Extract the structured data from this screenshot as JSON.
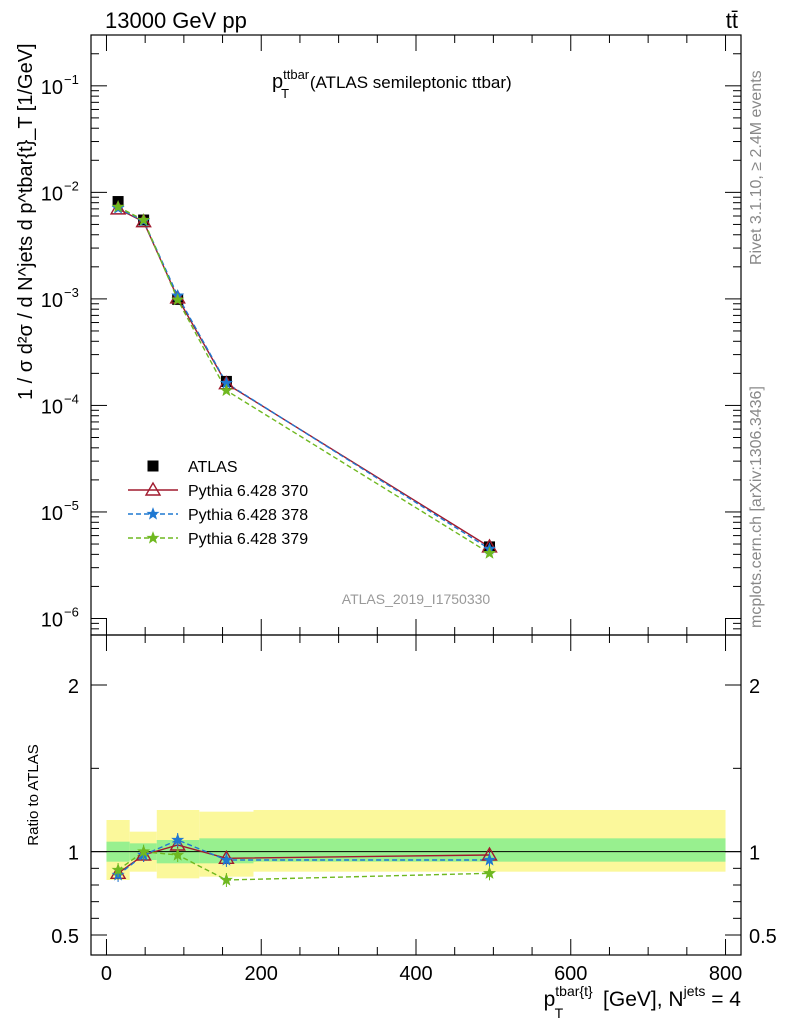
{
  "header": {
    "left": "13000 GeV pp",
    "right": "tt̄"
  },
  "side_labels": {
    "right_top": "Rivet 3.1.10, ≥ 2.4M events",
    "right_bottom": "mcplots.cern.ch [arXiv:1306.3436]"
  },
  "watermark": "ATLAS_2019_I1750330",
  "chart_data": [
    {
      "type": "line",
      "title": {
        "main": "p",
        "sup": "ttbar",
        "sub": "T",
        "rest": " (ATLAS semileptonic ttbar)"
      },
      "ylabel": "1 / σ d²σ / d N^jets d p^tbar{t}_T [1/GeV]",
      "yscale": "log",
      "xlim": [
        -20,
        820
      ],
      "ylim": [
        7e-07,
        0.3
      ],
      "y_ticks": [
        {
          "value": 0.1,
          "mant": "10",
          "exp": "−1"
        },
        {
          "value": 0.01,
          "mant": "10",
          "exp": "−2"
        },
        {
          "value": 0.001,
          "mant": "10",
          "exp": "−3"
        },
        {
          "value": 0.0001,
          "mant": "10",
          "exp": "−4"
        },
        {
          "value": 1e-05,
          "mant": "10",
          "exp": "−5"
        },
        {
          "value": 1e-06,
          "mant": "10",
          "exp": "−6"
        }
      ],
      "legend_position": "center-left",
      "x": [
        15,
        48,
        92,
        155,
        495
      ],
      "series": [
        {
          "name": "ATLAS",
          "values": [
            0.0082,
            0.0055,
            0.00099,
            0.000168,
            4.7e-06
          ],
          "color": "#000000",
          "marker": "square",
          "dash": "none"
        },
        {
          "name": "Pythia 6.428 370",
          "values": [
            0.007,
            0.0053,
            0.00102,
            0.00016,
            4.7e-06
          ],
          "color": "#a11a2e",
          "marker": "triangle",
          "dash": "solid"
        },
        {
          "name": "Pythia 6.428 378",
          "values": [
            0.0071,
            0.0054,
            0.00107,
            0.000162,
            4.5e-06
          ],
          "color": "#1f78d1",
          "marker": "star",
          "dash": "dashed"
        },
        {
          "name": "Pythia 6.428 379",
          "values": [
            0.0073,
            0.0055,
            0.00098,
            0.000138,
            4.1e-06
          ],
          "color": "#6fb820",
          "marker": "star",
          "dash": "dashed"
        }
      ]
    },
    {
      "type": "line",
      "ylabel": "Ratio to ATLAS",
      "xlabel": {
        "main": "p",
        "sup": "tbar{t}",
        "sub": "T",
        "rest": " [GeV], N",
        "sup2": "jets",
        "tail": " = 4"
      },
      "ylim": [
        0.38,
        2.3
      ],
      "y_ticks": [
        {
          "value": 0.5,
          "label": "0.5"
        },
        {
          "value": 1,
          "label": "1"
        },
        {
          "value": 2,
          "label": "2"
        }
      ],
      "x_ticks": [
        {
          "value": 0,
          "label": "0"
        },
        {
          "value": 200,
          "label": "200"
        },
        {
          "value": 400,
          "label": "400"
        },
        {
          "value": 600,
          "label": "600"
        },
        {
          "value": 800,
          "label": "800"
        }
      ],
      "x": [
        15,
        48,
        92,
        155,
        495
      ],
      "bands": [
        {
          "x0": 0,
          "x1": 30,
          "y_lo": 0.94,
          "y_hi": 1.06,
          "y_lo_total": 0.83,
          "y_hi_total": 1.19
        },
        {
          "x0": 30,
          "x1": 65,
          "y_lo": 0.95,
          "y_hi": 1.05,
          "y_lo_total": 0.88,
          "y_hi_total": 1.12
        },
        {
          "x0": 65,
          "x1": 120,
          "y_lo": 0.93,
          "y_hi": 1.07,
          "y_lo_total": 0.84,
          "y_hi_total": 1.25
        },
        {
          "x0": 120,
          "x1": 190,
          "y_lo": 0.93,
          "y_hi": 1.08,
          "y_lo_total": 0.85,
          "y_hi_total": 1.24
        },
        {
          "x0": 190,
          "x1": 800,
          "y_lo": 0.94,
          "y_hi": 1.08,
          "y_lo_total": 0.88,
          "y_hi_total": 1.25
        }
      ],
      "series": [
        {
          "name": "Pythia 6.428 370",
          "values": [
            0.87,
            0.98,
            1.04,
            0.96,
            0.98
          ],
          "color": "#a11a2e",
          "marker": "triangle",
          "dash": "solid"
        },
        {
          "name": "Pythia 6.428 378",
          "values": [
            0.86,
            0.98,
            1.07,
            0.95,
            0.95
          ],
          "color": "#1f78d1",
          "marker": "star",
          "dash": "dashed"
        },
        {
          "name": "Pythia 6.428 379",
          "values": [
            0.89,
            1.0,
            0.98,
            0.83,
            0.87
          ],
          "color": "#6fb820",
          "marker": "star",
          "dash": "dashed"
        }
      ]
    }
  ]
}
